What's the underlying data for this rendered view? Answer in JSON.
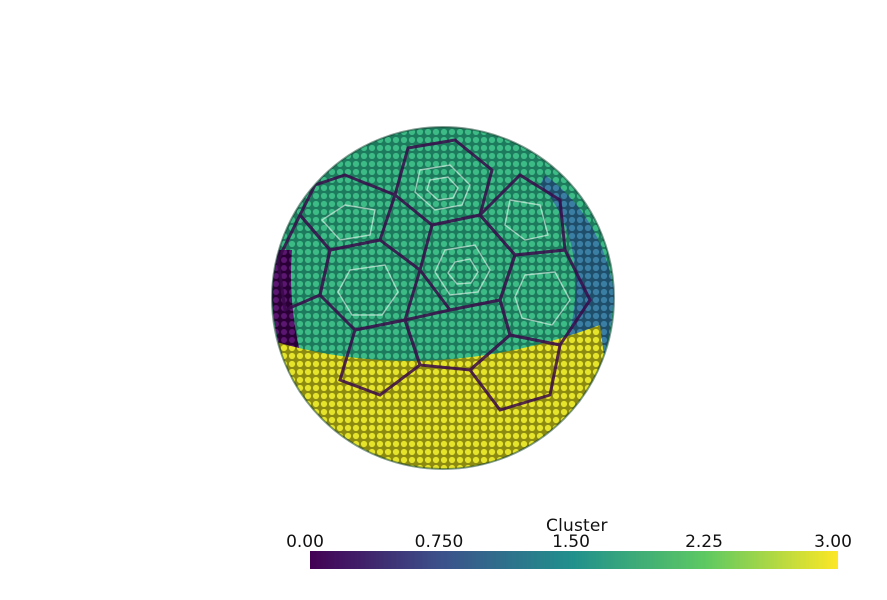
{
  "colorbar": {
    "title": "Cluster",
    "ticks": [
      "0.00",
      "0.750",
      "1.50",
      "2.25",
      "3.00"
    ],
    "range": [
      0,
      3
    ],
    "colormap": "viridis",
    "stops": [
      "#440154",
      "#3b528b",
      "#21918c",
      "#5ec962",
      "#fde725"
    ]
  },
  "scene": {
    "object": "soccer-ball-point-cloud",
    "cluster_colors": {
      "0": "#440154",
      "1": "#31688e",
      "2": "#26a374",
      "3": "#dce319"
    },
    "background": "#ffffff"
  }
}
